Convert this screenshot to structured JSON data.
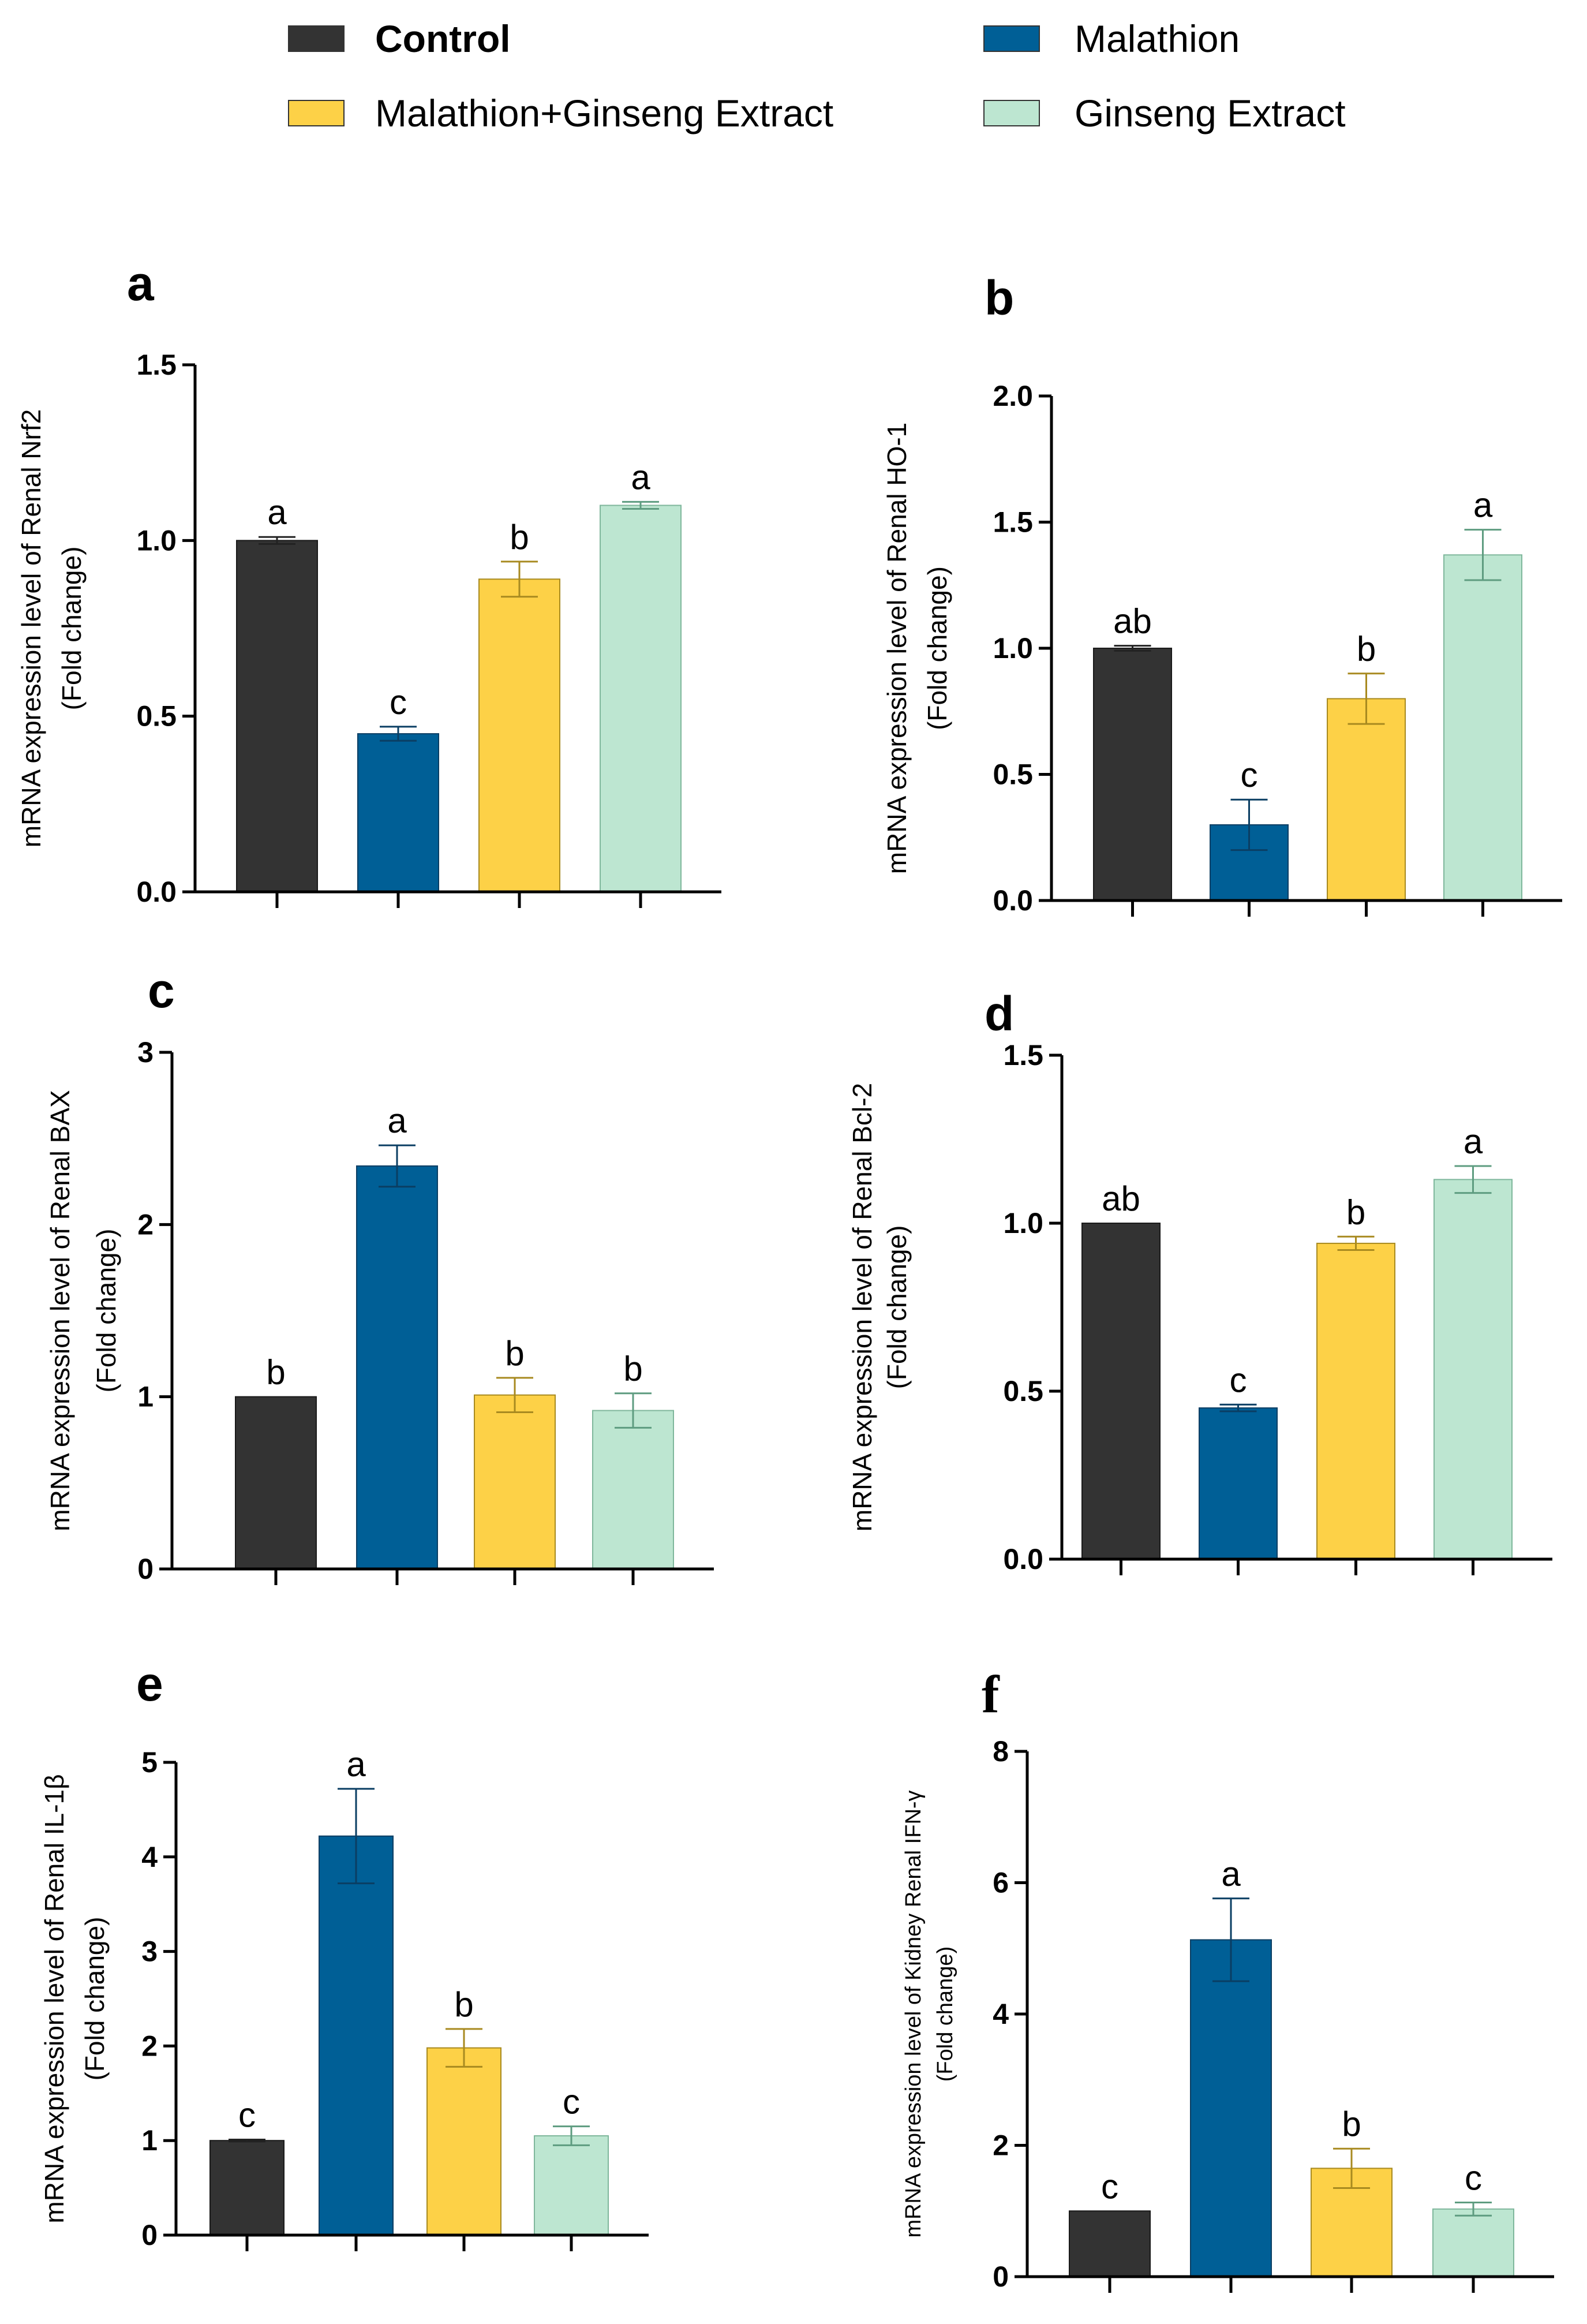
{
  "legend": [
    {
      "label": "Control",
      "color": "#333333",
      "bold": true
    },
    {
      "label": "Malathion",
      "color": "#005f96",
      "bold": false
    },
    {
      "label": "Malathion+Ginseng Extract",
      "color": "#fdd147",
      "bold": false
    },
    {
      "label": "Ginseng Extract",
      "color": "#bde6d1",
      "bold": false
    }
  ],
  "chart_data": [
    {
      "panel": "a",
      "type": "bar",
      "categories": [
        "Control",
        "Malathion",
        "Malathion+Ginseng Extract",
        "Ginseng Extract"
      ],
      "values": [
        1.0,
        0.45,
        0.89,
        1.1
      ],
      "errors": [
        0.01,
        0.02,
        0.05,
        0.01
      ],
      "letters": [
        "a",
        "c",
        "b",
        "a"
      ],
      "ylim": [
        0,
        1.5
      ],
      "yticks": [
        "0.0",
        "0.5",
        "1.0",
        "1.5"
      ],
      "ytick_values": [
        0,
        0.5,
        1.0,
        1.5
      ],
      "ylabel_line1": "mRNA expression level of  Renal Nrf2",
      "ylabel_line2": "(Fold change)"
    },
    {
      "panel": "b",
      "type": "bar",
      "categories": [
        "Control",
        "Malathion",
        "Malathion+Ginseng Extract",
        "Ginseng Extract"
      ],
      "values": [
        1.0,
        0.3,
        0.8,
        1.37
      ],
      "errors": [
        0.01,
        0.1,
        0.1,
        0.1
      ],
      "letters": [
        "ab",
        "c",
        "b",
        "a"
      ],
      "ylim": [
        0,
        2.0
      ],
      "yticks": [
        "0.0",
        "0.5",
        "1.0",
        "1.5",
        "2.0"
      ],
      "ytick_values": [
        0,
        0.5,
        1.0,
        1.5,
        2.0
      ],
      "ylabel_line1": "mRNA expression level of Renal HO-1",
      "ylabel_line2": "(Fold change)"
    },
    {
      "panel": "c",
      "type": "bar",
      "categories": [
        "Control",
        "Malathion",
        "Malathion+Ginseng Extract",
        "Ginseng Extract"
      ],
      "values": [
        1.0,
        2.34,
        1.01,
        0.92
      ],
      "errors": [
        0.0,
        0.12,
        0.1,
        0.1
      ],
      "letters": [
        "b",
        "a",
        "b",
        "b"
      ],
      "ylim": [
        0,
        3
      ],
      "yticks": [
        "0",
        "1",
        "2",
        "3"
      ],
      "ytick_values": [
        0,
        1,
        2,
        3
      ],
      "ylabel_line1": "mRNA expression level of Renal BAX",
      "ylabel_line2": "(Fold change)"
    },
    {
      "panel": "d",
      "type": "bar",
      "categories": [
        "Control",
        "Malathion",
        "Malathion+Ginseng Extract",
        "Ginseng Extract"
      ],
      "values": [
        1.0,
        0.45,
        0.94,
        1.13
      ],
      "errors": [
        0.0,
        0.01,
        0.02,
        0.04
      ],
      "letters": [
        "ab",
        "c",
        "b",
        "a"
      ],
      "ylim": [
        0,
        1.5
      ],
      "yticks": [
        "0.0",
        "0.5",
        "1.0",
        "1.5"
      ],
      "ytick_values": [
        0,
        0.5,
        1.0,
        1.5
      ],
      "ylabel_line1": "mRNA expression level of  Renal Bcl-2",
      "ylabel_line2": "(Fold change)"
    },
    {
      "panel": "e",
      "type": "bar",
      "categories": [
        "Control",
        "Malathion",
        "Malathion+Ginseng Extract",
        "Ginseng Extract"
      ],
      "values": [
        1.0,
        4.22,
        1.98,
        1.05
      ],
      "errors": [
        0.01,
        0.5,
        0.2,
        0.1
      ],
      "letters": [
        "c",
        "a",
        "b",
        "c"
      ],
      "ylim": [
        0,
        5
      ],
      "yticks": [
        "0",
        "1",
        "2",
        "3",
        "4",
        "5"
      ],
      "ytick_values": [
        0,
        1,
        2,
        3,
        4,
        5
      ],
      "ylabel_line1": "mRNA expression level of Renal IL-1β",
      "ylabel_line2": "(Fold change)"
    },
    {
      "panel": "f",
      "type": "bar",
      "categories": [
        "Control",
        "Malathion",
        "Malathion+Ginseng Extract",
        "Ginseng Extract"
      ],
      "values": [
        1.0,
        5.13,
        1.65,
        1.03
      ],
      "errors": [
        0.0,
        0.63,
        0.3,
        0.1
      ],
      "letters": [
        "c",
        "a",
        "b",
        "c"
      ],
      "ylim": [
        0,
        8
      ],
      "yticks": [
        "0",
        "2",
        "4",
        "6",
        "8"
      ],
      "ytick_values": [
        0,
        2,
        4,
        6,
        8
      ],
      "ylabel_line1": "mRNA expression level of Kidney Renal  IFN-γ",
      "ylabel_line2": "(Fold change)"
    }
  ]
}
